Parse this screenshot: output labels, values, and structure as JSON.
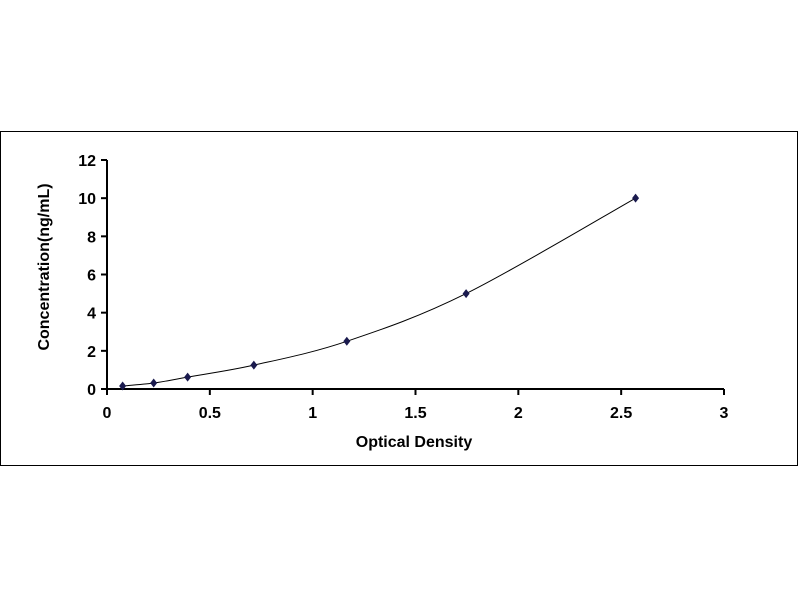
{
  "chart_data": {
    "type": "scatter",
    "title": "",
    "xlabel": "Optical Density",
    "ylabel": "Concentration(ng/mL)",
    "xlim": [
      0,
      3
    ],
    "ylim": [
      0,
      12
    ],
    "xticks": [
      "0",
      "0.5",
      "1",
      "1.5",
      "2",
      "2.5",
      "3"
    ],
    "yticks": [
      "0",
      "2",
      "4",
      "6",
      "8",
      "10",
      "12"
    ],
    "grid": false,
    "trendline": "smooth curve",
    "marker": "diamond",
    "marker_color": "#1a1a4e",
    "points": [
      {
        "x": 0.076,
        "y": 0.156
      },
      {
        "x": 0.227,
        "y": 0.312
      },
      {
        "x": 0.392,
        "y": 0.625
      },
      {
        "x": 0.714,
        "y": 1.25
      },
      {
        "x": 1.166,
        "y": 2.5
      },
      {
        "x": 1.746,
        "y": 5
      },
      {
        "x": 2.57,
        "y": 10
      }
    ]
  }
}
